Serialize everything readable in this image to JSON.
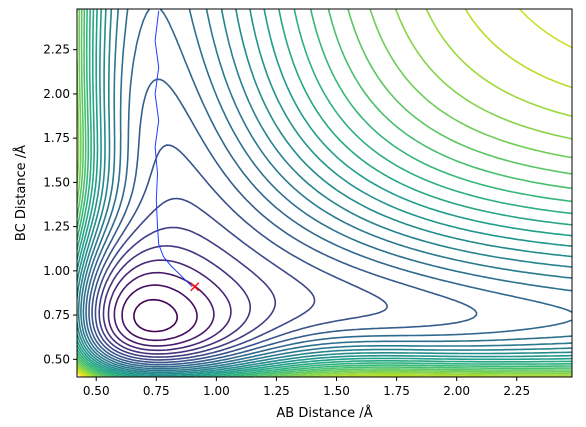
{
  "chart_data": {
    "type": "contour",
    "title": "",
    "xlabel": "AB Distance /Å",
    "ylabel": "BC Distance /Å",
    "xlim": [
      0.42,
      2.48
    ],
    "ylim": [
      0.4,
      2.48
    ],
    "xticks": [
      0.5,
      0.75,
      1.0,
      1.25,
      1.5,
      1.75,
      2.0,
      2.25
    ],
    "xtick_labels": [
      "0.50",
      "0.75",
      "1.00",
      "1.25",
      "1.50",
      "1.75",
      "2.00",
      "2.25"
    ],
    "yticks": [
      0.5,
      0.75,
      1.0,
      1.25,
      1.5,
      1.75,
      2.0,
      2.25
    ],
    "ytick_labels": [
      "0.50",
      "0.75",
      "1.00",
      "1.25",
      "1.50",
      "1.75",
      "2.00",
      "2.25"
    ],
    "grid": false,
    "colormap": [
      "#440154",
      "#482878",
      "#3e4989",
      "#31688e",
      "#26828e",
      "#1f9e89",
      "#35b779",
      "#6ece58",
      "#b5de2b",
      "#fde725"
    ],
    "contour_levels": 28,
    "trajectory": {
      "color": "#1f3fff",
      "x": [
        0.76,
        0.745,
        0.76,
        0.745,
        0.76,
        0.745,
        0.755,
        0.75,
        0.755,
        0.76,
        0.78,
        0.81,
        0.84,
        0.87,
        0.9
      ],
      "y": [
        2.47,
        2.3,
        2.15,
        2.0,
        1.85,
        1.7,
        1.55,
        1.4,
        1.25,
        1.15,
        1.08,
        1.03,
        0.99,
        0.95,
        0.91
      ]
    },
    "marker": {
      "x": 0.91,
      "y": 0.91,
      "symbol": "x",
      "color": "#ff0000"
    }
  }
}
